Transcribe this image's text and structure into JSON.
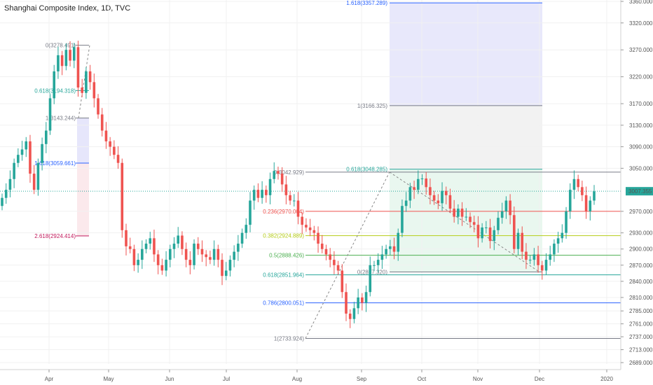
{
  "header": {
    "title": "Shanghai Composite Index, 1D, TVC"
  },
  "price_axis": {
    "ticks": [
      "3360.000",
      "3320.000",
      "3270.000",
      "3220.000",
      "3170.000",
      "3130.000",
      "3090.000",
      "3050.000",
      "2970.000",
      "2930.000",
      "2900.000",
      "2870.000",
      "2840.000",
      "2810.000",
      "2785.000",
      "2761.000",
      "2737.000",
      "2713.000",
      "2689.000"
    ],
    "last_price": "3007.355"
  },
  "time_axis": {
    "labels": [
      "Apr",
      "May",
      "Jun",
      "Jul",
      "Aug",
      "Sep",
      "Oct",
      "Nov",
      "Dec",
      "2020"
    ]
  },
  "fib_upper_left": {
    "levels": [
      {
        "label": "0(3278.491)",
        "price": 3278.491
      },
      {
        "label": "0.618(3194.318)",
        "price": 3194.318
      },
      {
        "label": "1(3143.244)",
        "price": 3143.244
      },
      {
        "label": "1.618(3059.661)",
        "price": 3059.661
      },
      {
        "label": "2.618(2924.414)",
        "price": 2924.414
      }
    ]
  },
  "fib_right_ext": {
    "levels": [
      {
        "label": "1.618(3357.289)",
        "price": 3357.289
      },
      {
        "label": "1(3166.325)",
        "price": 3166.325
      },
      {
        "label": "0.618(3048.285)",
        "price": 3048.285
      },
      {
        "label": "0(2857.320)",
        "price": 2857.32
      }
    ]
  },
  "fib_retracement": {
    "levels": [
      {
        "label": "0(3042.929)",
        "price": 3042.929
      },
      {
        "label": "0.236(2970.004)",
        "price": 2970.004
      },
      {
        "label": "0.382(2924.889)",
        "price": 2924.889
      },
      {
        "label": "0.5(2888.426)",
        "price": 2888.426
      },
      {
        "label": "0.618(2851.964)",
        "price": 2851.964
      },
      {
        "label": "0.786(2800.051)",
        "price": 2800.051
      },
      {
        "label": "1(2733.924)",
        "price": 2733.924
      }
    ]
  },
  "colors": {
    "up": "#26a69a",
    "down": "#ef5350",
    "last_price": "#26a69a",
    "fib_0": "#787b86",
    "fib_0236": "#ef5350",
    "fib_0382": "#b5cc18",
    "fib_05": "#4caf50",
    "fib_0618": "#26a69a",
    "fib_0786": "#2962ff",
    "fib_1618": "#2962ff",
    "fib_2618": "#c2185b"
  },
  "chart_data": {
    "type": "candlestick",
    "title": "Shanghai Composite Index, 1D, TVC",
    "x_axis": [
      "Apr",
      "May",
      "Jun",
      "Jul",
      "Aug",
      "Sep",
      "Oct",
      "Nov",
      "Dec",
      "2020"
    ],
    "ylim": [
      2689,
      3360
    ],
    "last_price": 3007.355,
    "series": [
      {
        "name": "close",
        "values": [
          2995,
          3010,
          3030,
          3060,
          3075,
          3085,
          3100,
          3040,
          3010,
          3060,
          3095,
          3120,
          3180,
          3230,
          3260,
          3240,
          3270,
          3250,
          3275,
          3200,
          3190,
          3230,
          3210,
          3180,
          3150,
          3120,
          3100,
          3090,
          3075,
          3060,
          2935,
          2905,
          2900,
          2870,
          2880,
          2900,
          2910,
          2920,
          2890,
          2870,
          2860,
          2880,
          2900,
          2910,
          2925,
          2900,
          2880,
          2870,
          2910,
          2900,
          2890,
          2885,
          2880,
          2900,
          2880,
          2850,
          2860,
          2880,
          2895,
          2910,
          2930,
          2945,
          2990,
          3010,
          2995,
          3010,
          3000,
          3030,
          3045,
          3040,
          3020,
          3000,
          2990,
          2990,
          2960,
          2945,
          2940,
          2935,
          2930,
          2910,
          2900,
          2890,
          2880,
          2870,
          2860,
          2820,
          2780,
          2770,
          2790,
          2810,
          2800,
          2820,
          2870,
          2870,
          2880,
          2890,
          2900,
          2905,
          2895,
          2930,
          2980,
          2990,
          3015,
          3010,
          3030,
          3031,
          3015,
          3000,
          2990,
          2985,
          3008,
          3000,
          2975,
          2960,
          2975,
          2960,
          2960,
          2950,
          2945,
          2920,
          2940,
          2940,
          2915,
          2935,
          2958,
          2970,
          2990,
          2963,
          2900,
          2930,
          2895,
          2880,
          2880,
          2890,
          2870,
          2860,
          2880,
          2890,
          2910,
          2920,
          2930,
          2970,
          3010,
          3030,
          3015,
          3000,
          2970,
          2990,
          3007
        ]
      },
      {
        "name": "fib_retracement_high",
        "values": [
          3042.929
        ]
      },
      {
        "name": "fib_retracement_low",
        "values": [
          2733.924
        ]
      }
    ]
  }
}
